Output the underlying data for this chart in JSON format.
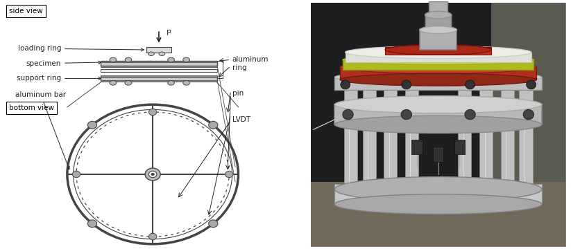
{
  "fig_width": 8.23,
  "fig_height": 3.6,
  "dpi": 100,
  "bg_color": "#ffffff",
  "lc": "#444444",
  "dc": "#222222",
  "fs": 7.5,
  "labels": {
    "side_view": "side view",
    "bottom_view": "bottom view",
    "loading_ring": "loading ring",
    "specimen": "specimen",
    "support_ring": "support ring",
    "aluminum_bar": "aluminum bar",
    "aluminum_ring": "aluminum\nring",
    "pin": "pin",
    "LVDT": "LVDT",
    "P": "P"
  },
  "photo_bg": "#1c1c1e",
  "photo_wall": "#3a3830",
  "photo_floor": "#6a6050",
  "photo_silver": "#c0c0c0",
  "photo_silver_dark": "#909090",
  "photo_silver_light": "#e0e0e0",
  "photo_red": "#b83020",
  "photo_red2": "#c84030",
  "photo_orange": "#c06820",
  "photo_yellow": "#c8c020",
  "photo_white": "#e8e8e0",
  "photo_black": "#181818"
}
